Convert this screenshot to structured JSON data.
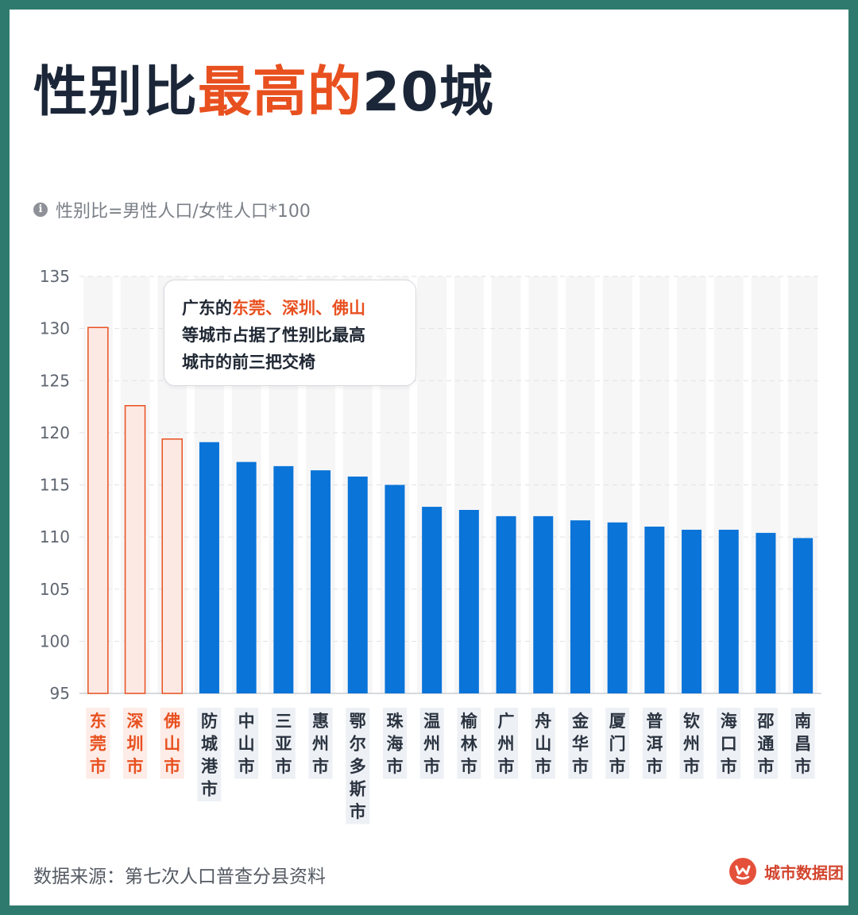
{
  "title": {
    "part1": "性别比",
    "part2": "最高的",
    "part3": "20城"
  },
  "note": "性别比=男性人口/女性人口*100",
  "callout": {
    "line1_prefix": "广东的",
    "line1_highlight": "东莞、深圳、佛山",
    "line2": "等城市占据了性别比最高",
    "line3": "城市的前三把交椅"
  },
  "footer": {
    "source": "数据来源：第七次人口普查分县资料",
    "brand": "城市数据团"
  },
  "colors": {
    "highlight_bar_fill": "#fde9e4",
    "highlight_bar_stroke": "#e8501f",
    "highlight_label": "#e8501f",
    "highlight_label_bg": "#fdece7",
    "bar": "#0a74d8",
    "label": "#2a3340",
    "label_bg": "#edf0f4",
    "title_accent": "#e8501f"
  },
  "chart_data": {
    "type": "bar",
    "ylim": [
      95,
      135
    ],
    "yticks": [
      95,
      100,
      105,
      110,
      115,
      120,
      125,
      130,
      135
    ],
    "grid": true,
    "categories": [
      "东莞市",
      "深圳市",
      "佛山市",
      "防城港市",
      "中山市",
      "三亚市",
      "惠州市",
      "鄂尔多斯市",
      "珠海市",
      "温州市",
      "榆林市",
      "广州市",
      "舟山市",
      "金华市",
      "厦门市",
      "普洱市",
      "钦州市",
      "海口市",
      "邵通市",
      "南昌市"
    ],
    "values": [
      130.1,
      122.6,
      119.4,
      119.1,
      117.2,
      116.8,
      116.4,
      115.8,
      115.0,
      112.9,
      112.6,
      112.0,
      112.0,
      111.6,
      111.4,
      111.0,
      110.7,
      110.7,
      110.4,
      109.9
    ],
    "highlighted": [
      0,
      1,
      2
    ]
  }
}
